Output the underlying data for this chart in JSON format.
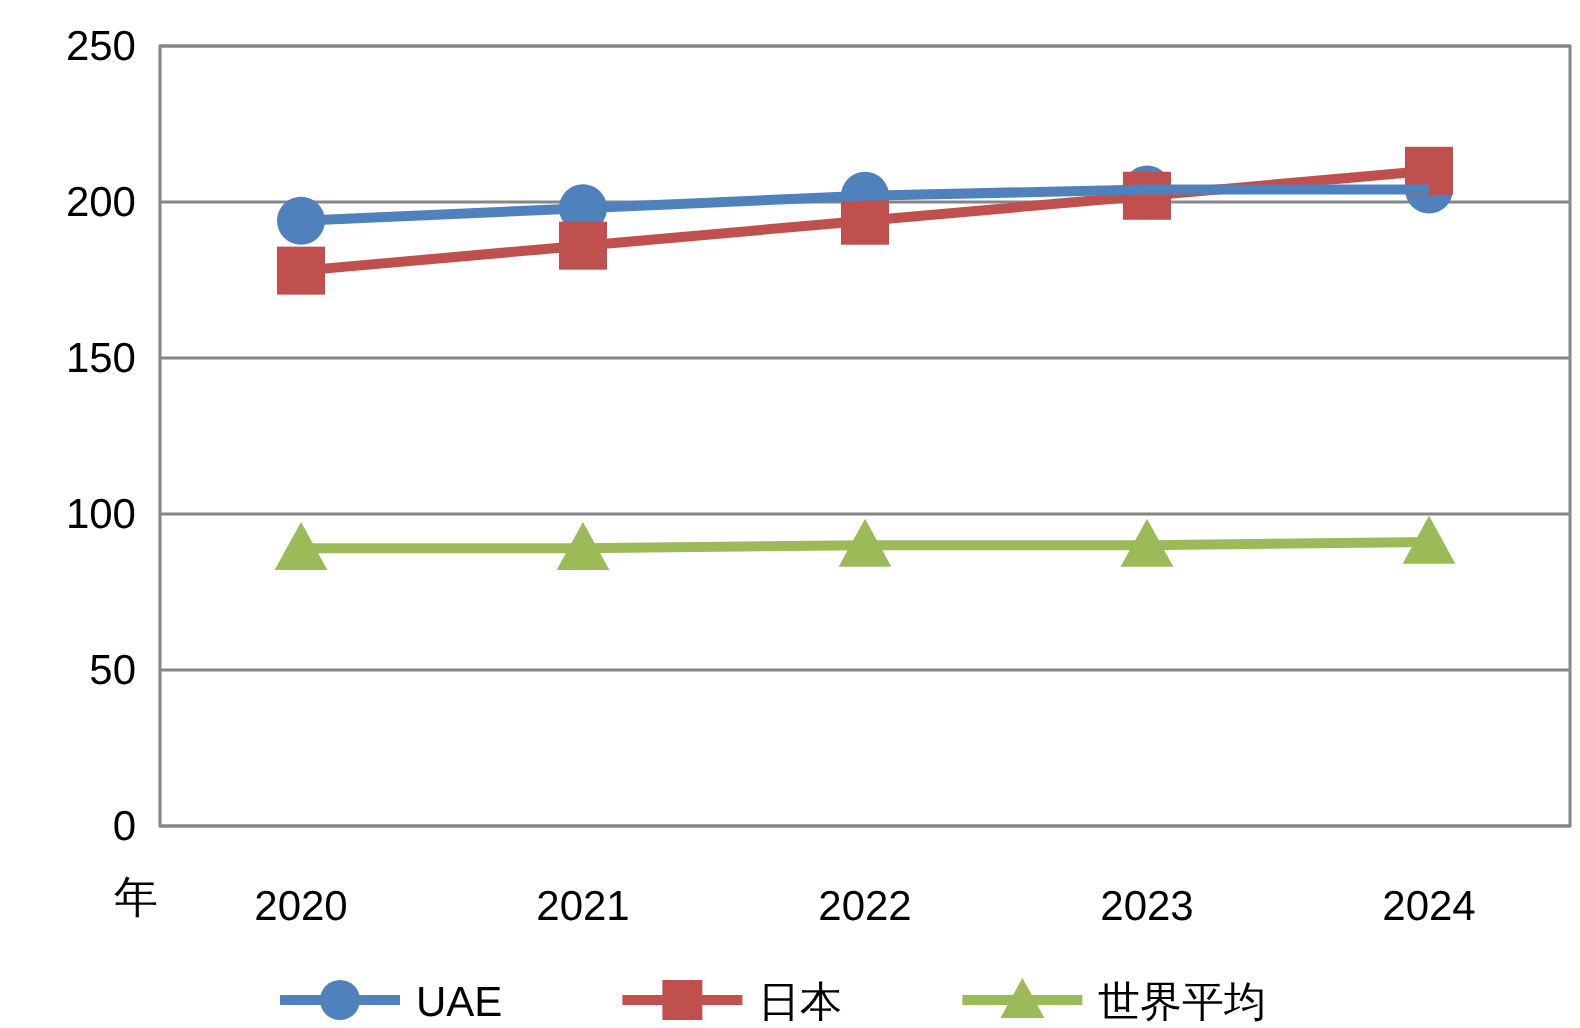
{
  "chart_data": {
    "type": "line",
    "xlabel": "年",
    "categories": [
      "2020",
      "2021",
      "2022",
      "2023",
      "2024"
    ],
    "series": [
      {
        "name": "UAE",
        "color": "#4f81bd",
        "marker": "circle",
        "values": [
          194,
          198,
          202,
          204,
          204
        ]
      },
      {
        "name": "日本",
        "color": "#c0504d",
        "marker": "square",
        "values": [
          178,
          186,
          194,
          202,
          210
        ]
      },
      {
        "name": "世界平均",
        "color": "#9bbb59",
        "marker": "triangle",
        "values": [
          89,
          89,
          90,
          90,
          91
        ]
      }
    ],
    "ylim": [
      0,
      250
    ],
    "yticks": [
      0,
      50,
      100,
      150,
      200,
      250
    ],
    "grid": "y",
    "legend": "bottom"
  }
}
